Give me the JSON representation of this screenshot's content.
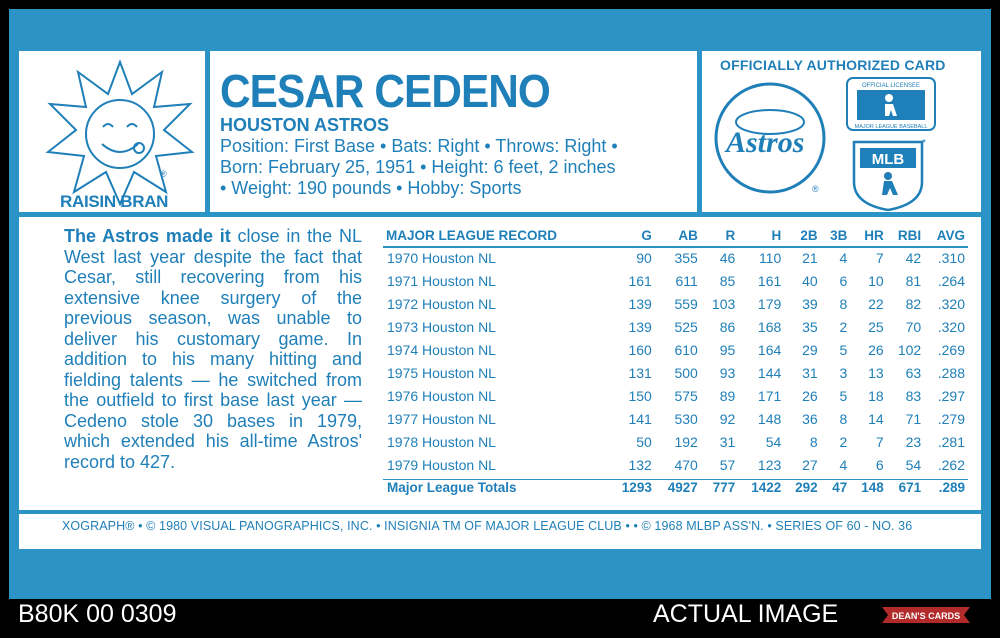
{
  "card": {
    "brand": "RAISIN BRAN",
    "player_name": "CESAR CEDENO",
    "team": "HOUSTON ASTROS",
    "bio_line1": "Position: First Base • Bats: Right • Throws: Right •",
    "bio_line2": "Born: February 25, 1951 • Height: 6 feet, 2 inches",
    "bio_line3": "• Weight: 190 pounds • Hobby: Sports",
    "official": "OFFICIALLY AUTHORIZED CARD",
    "astros_logo_text": "Astros",
    "mlb_top_text": "OFFICIAL LICENSEE",
    "mlb_top_sub": "MAJOR LEAGUE BASEBALL",
    "mlb_logo_text": "MLB",
    "story_bold": "The Astros made it",
    "story_rest": " close in the NL West last year despite the fact that Cesar, still recovering from his extensive knee surgery of the previous season, was unable to deliver his customary game. In addition to his many hitting and fielding talents — he switched from the outfield to first base last year — Cedeno stole 30 bases in 1979, which extended his all-time Astros' record to 427.",
    "footer": "XOGRAPH® • © 1980 VISUAL PANOGRAPHICS, INC. • INSIGNIA TM OF MAJOR LEAGUE CLUB • • © 1968 MLBP ASS'N. • SERIES OF 60 - NO. 36"
  },
  "stats": {
    "headers": [
      "MAJOR LEAGUE RECORD",
      "G",
      "AB",
      "R",
      "H",
      "2B",
      "3B",
      "HR",
      "RBI",
      "AVG"
    ],
    "rows": [
      [
        "1970 Houston NL",
        "90",
        "355",
        "46",
        "110",
        "21",
        "4",
        "7",
        "42",
        ".310"
      ],
      [
        "1971 Houston NL",
        "161",
        "611",
        "85",
        "161",
        "40",
        "6",
        "10",
        "81",
        ".264"
      ],
      [
        "1972 Houston NL",
        "139",
        "559",
        "103",
        "179",
        "39",
        "8",
        "22",
        "82",
        ".320"
      ],
      [
        "1973 Houston NL",
        "139",
        "525",
        "86",
        "168",
        "35",
        "2",
        "25",
        "70",
        ".320"
      ],
      [
        "1974 Houston NL",
        "160",
        "610",
        "95",
        "164",
        "29",
        "5",
        "26",
        "102",
        ".269"
      ],
      [
        "1975 Houston NL",
        "131",
        "500",
        "93",
        "144",
        "31",
        "3",
        "13",
        "63",
        ".288"
      ],
      [
        "1976 Houston NL",
        "150",
        "575",
        "89",
        "171",
        "26",
        "5",
        "18",
        "83",
        ".297"
      ],
      [
        "1977 Houston NL",
        "141",
        "530",
        "92",
        "148",
        "36",
        "8",
        "14",
        "71",
        ".279"
      ],
      [
        "1978 Houston NL",
        "50",
        "192",
        "31",
        "54",
        "8",
        "2",
        "7",
        "23",
        ".281"
      ],
      [
        "1979 Houston NL",
        "132",
        "470",
        "57",
        "123",
        "27",
        "4",
        "6",
        "54",
        ".262"
      ]
    ],
    "totals": [
      "Major League Totals",
      "1293",
      "4927",
      "777",
      "1422",
      "292",
      "47",
      "148",
      "671",
      ".289"
    ]
  },
  "overlay": {
    "left_id": "B80K 00 0309",
    "right_label": "ACTUAL IMAGE",
    "dealer_logo": "DEAN'S CARDS"
  },
  "colors": {
    "card_blue": "#2b93c6",
    "ink_blue": "#1f7fb8",
    "background": "#000000"
  }
}
